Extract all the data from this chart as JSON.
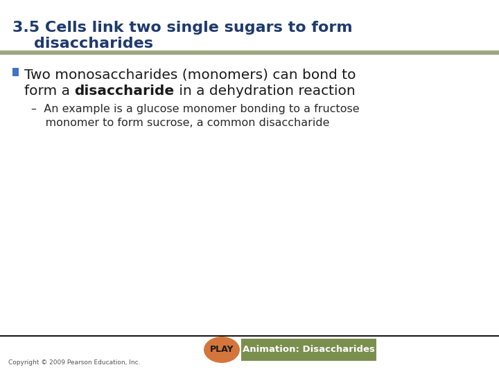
{
  "title_line1": "3.5 Cells link two single sugars to form",
  "title_line2": "    disaccharides",
  "title_color": "#1F3A6E",
  "title_fontsize": 16,
  "separator_color": "#9BA880",
  "bullet_color": "#4472C4",
  "bullet_text_line1": "Two monosaccharides (monomers) can bond to",
  "bullet_text_line2_pre": "form a ",
  "bullet_text_line2_bold": "disaccharide",
  "bullet_text_line2_post": " in a dehydration reaction",
  "bullet_fontsize": 14.5,
  "sub_bullet_line1": "–  An example is a glucose monomer bonding to a fructose",
  "sub_bullet_line2": "    monomer to form sucrose, a common disaccharide",
  "sub_bullet_fontsize": 11.5,
  "sub_bullet_color": "#2A2A2A",
  "play_button_color": "#D4763B",
  "play_button_text": "PLAY",
  "animation_box_color": "#7A8F4E",
  "animation_text": "Animation: Disaccharides",
  "animation_text_color": "#FFFFFF",
  "copyright_text": "Copyright © 2009 Pearson Education, Inc.",
  "copyright_fontsize": 6.5,
  "background_color": "#FFFFFF",
  "bottom_line_color": "#1A1A1A"
}
